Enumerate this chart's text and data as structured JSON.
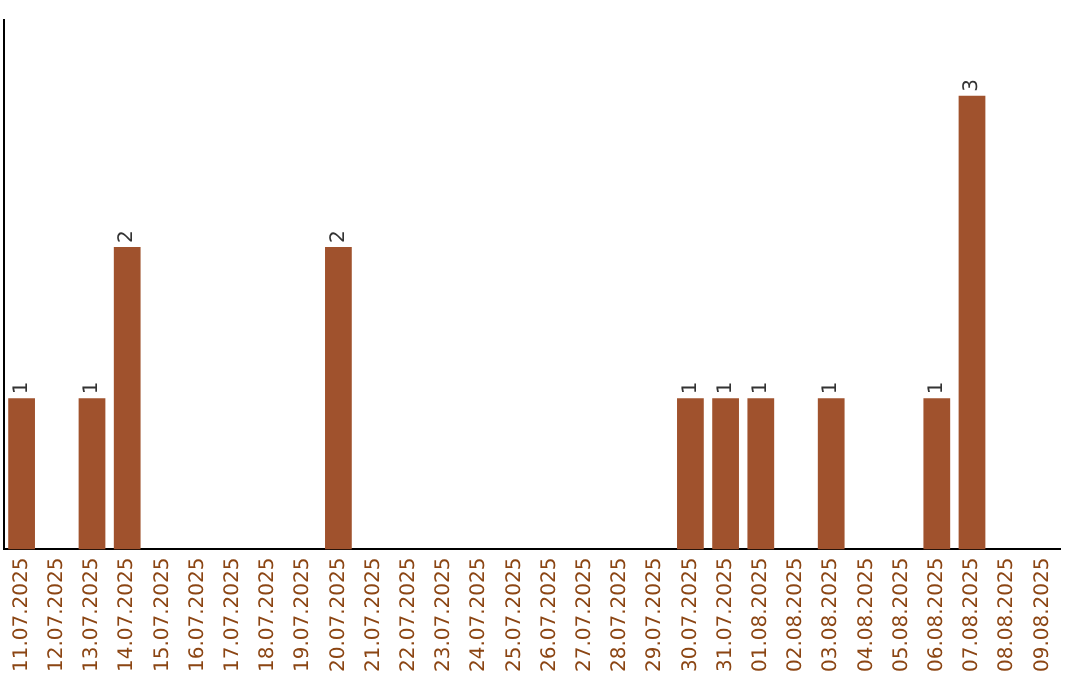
{
  "chart_data": {
    "type": "bar",
    "categories": [
      "11.07.2025",
      "12.07.2025",
      "13.07.2025",
      "14.07.2025",
      "15.07.2025",
      "16.07.2025",
      "17.07.2025",
      "18.07.2025",
      "19.07.2025",
      "20.07.2025",
      "21.07.2025",
      "22.07.2025",
      "23.07.2025",
      "24.07.2025",
      "25.07.2025",
      "26.07.2025",
      "27.07.2025",
      "28.07.2025",
      "29.07.2025",
      "30.07.2025",
      "31.07.2025",
      "01.08.2025",
      "02.08.2025",
      "03.08.2025",
      "04.08.2025",
      "05.08.2025",
      "06.08.2025",
      "07.08.2025",
      "08.08.2025",
      "09.08.2025"
    ],
    "values": [
      1,
      0,
      1,
      2,
      0,
      0,
      0,
      0,
      0,
      2,
      0,
      0,
      0,
      0,
      0,
      0,
      0,
      0,
      0,
      1,
      1,
      1,
      0,
      1,
      0,
      0,
      1,
      3,
      0,
      0
    ],
    "value_labels": [
      "1",
      null,
      "1",
      "2",
      null,
      null,
      null,
      null,
      null,
      "2",
      null,
      null,
      null,
      null,
      null,
      null,
      null,
      null,
      null,
      "1",
      "1",
      "1",
      null,
      "1",
      null,
      null,
      "1",
      "3",
      null,
      null
    ],
    "color": "#a0522d",
    "grid": false,
    "legend": false,
    "tick_labels": "x"
  }
}
